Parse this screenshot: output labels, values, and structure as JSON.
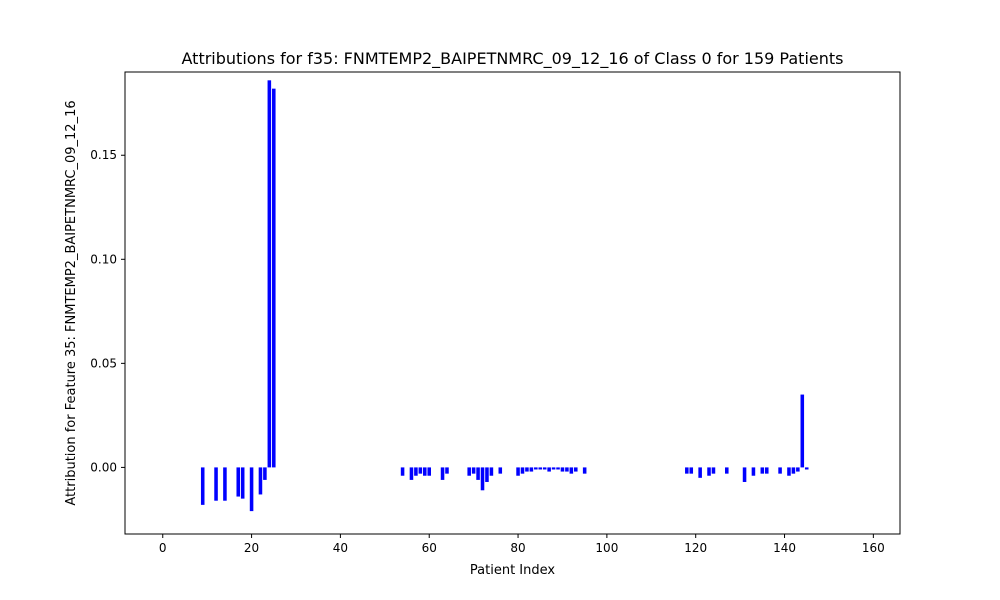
{
  "chart_data": {
    "type": "bar",
    "title": "Attributions for f35: FNMTEMP2_BAIPETNMRC_09_12_16 of Class 0 for 159 Patients",
    "xlabel": "Patient Index",
    "ylabel": "Attribution for Feature 35: FNMTEMP2_BAIPETNMRC_09_12_16",
    "xlim": [
      -8.5,
      166
    ],
    "ylim": [
      -0.032,
      0.19
    ],
    "xticks": [
      0,
      20,
      40,
      60,
      80,
      100,
      120,
      140,
      160
    ],
    "xtick_labels": [
      "0",
      "20",
      "40",
      "60",
      "80",
      "100",
      "120",
      "140",
      "160"
    ],
    "yticks": [
      0.0,
      0.05,
      0.1,
      0.15
    ],
    "ytick_labels": [
      "0.00",
      "0.05",
      "0.10",
      "0.15"
    ],
    "bar_color": "#0000ff",
    "grid": false,
    "x": [
      9,
      12,
      14,
      17,
      18,
      20,
      22,
      23,
      24,
      25,
      54,
      56,
      57,
      58,
      59,
      60,
      63,
      64,
      69,
      70,
      71,
      72,
      73,
      74,
      76,
      80,
      81,
      82,
      83,
      84,
      85,
      86,
      87,
      88,
      89,
      90,
      91,
      92,
      93,
      95,
      118,
      119,
      121,
      123,
      124,
      127,
      131,
      133,
      135,
      136,
      139,
      141,
      142,
      143,
      144,
      145
    ],
    "values": [
      -0.018,
      -0.016,
      -0.016,
      -0.014,
      -0.015,
      -0.021,
      -0.013,
      -0.006,
      0.186,
      0.182,
      -0.004,
      -0.006,
      -0.004,
      -0.003,
      -0.004,
      -0.004,
      -0.006,
      -0.003,
      -0.004,
      -0.003,
      -0.006,
      -0.011,
      -0.007,
      -0.004,
      -0.003,
      -0.004,
      -0.003,
      -0.002,
      -0.002,
      -0.001,
      -0.001,
      -0.001,
      -0.002,
      -0.001,
      -0.001,
      -0.002,
      -0.002,
      -0.003,
      -0.002,
      -0.003,
      -0.003,
      -0.003,
      -0.005,
      -0.004,
      -0.003,
      -0.003,
      -0.007,
      -0.004,
      -0.003,
      -0.003,
      -0.003,
      -0.004,
      -0.003,
      -0.002,
      0.035,
      -0.001
    ]
  }
}
